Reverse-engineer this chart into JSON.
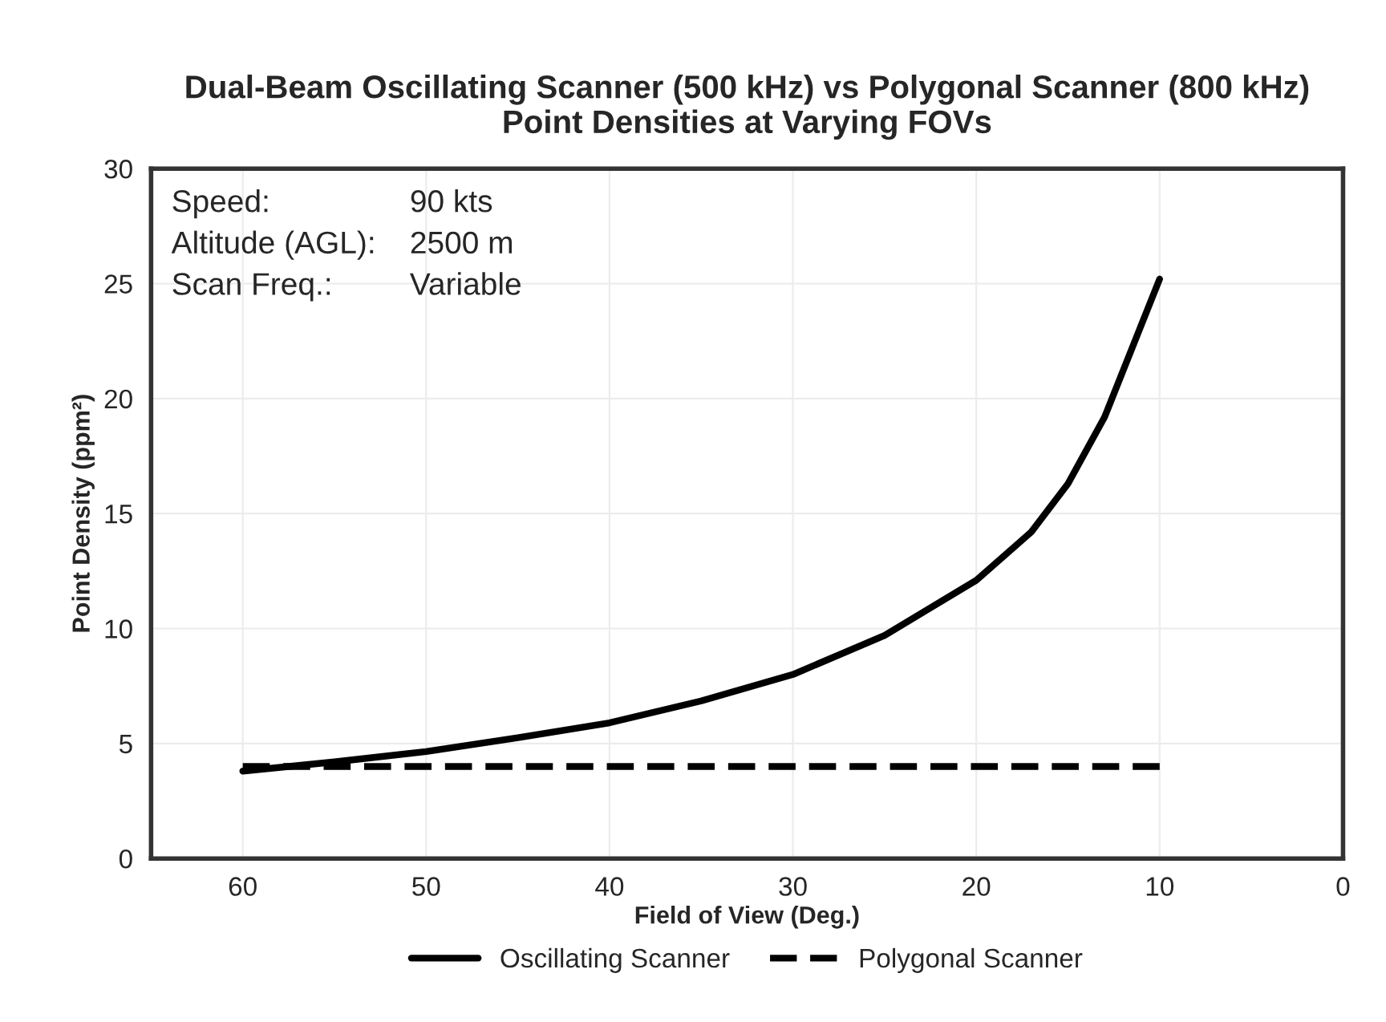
{
  "chart_data": {
    "type": "line",
    "title": "Dual-Beam Oscillating Scanner (500 kHz) vs Polygonal Scanner (800 kHz)\nPoint Densities at Varying FOVs",
    "xlabel": "Field of View (Deg.)",
    "ylabel": "Point Density (ppm²)",
    "xlim": [
      65,
      0
    ],
    "xticks": [
      60,
      50,
      40,
      30,
      20,
      10,
      0
    ],
    "ylim": [
      0,
      30
    ],
    "yticks": [
      0,
      5,
      10,
      15,
      20,
      25,
      30
    ],
    "grid": true,
    "legend": "bottom",
    "annotations": [
      "Speed:",
      "90 kts",
      "Altitude (AGL):",
      "2500 m",
      "Scan Freq.:",
      "Variable"
    ],
    "series": [
      {
        "name": "Oscillating Scanner",
        "color": "#000000",
        "line_style": "solid",
        "x": [
          60,
          55,
          50,
          45,
          40,
          35,
          30,
          25,
          20,
          17,
          15,
          13,
          11.5,
          10
        ],
        "values": [
          3.8,
          4.2,
          4.65,
          5.25,
          5.9,
          6.85,
          8.0,
          9.7,
          12.1,
          14.2,
          16.3,
          19.2,
          22.2,
          25.2
        ]
      },
      {
        "name": "Polygonal Scanner",
        "color": "#000000",
        "line_style": "dashed",
        "x": [
          60,
          10
        ],
        "values": [
          4.0,
          4.0
        ]
      }
    ]
  }
}
